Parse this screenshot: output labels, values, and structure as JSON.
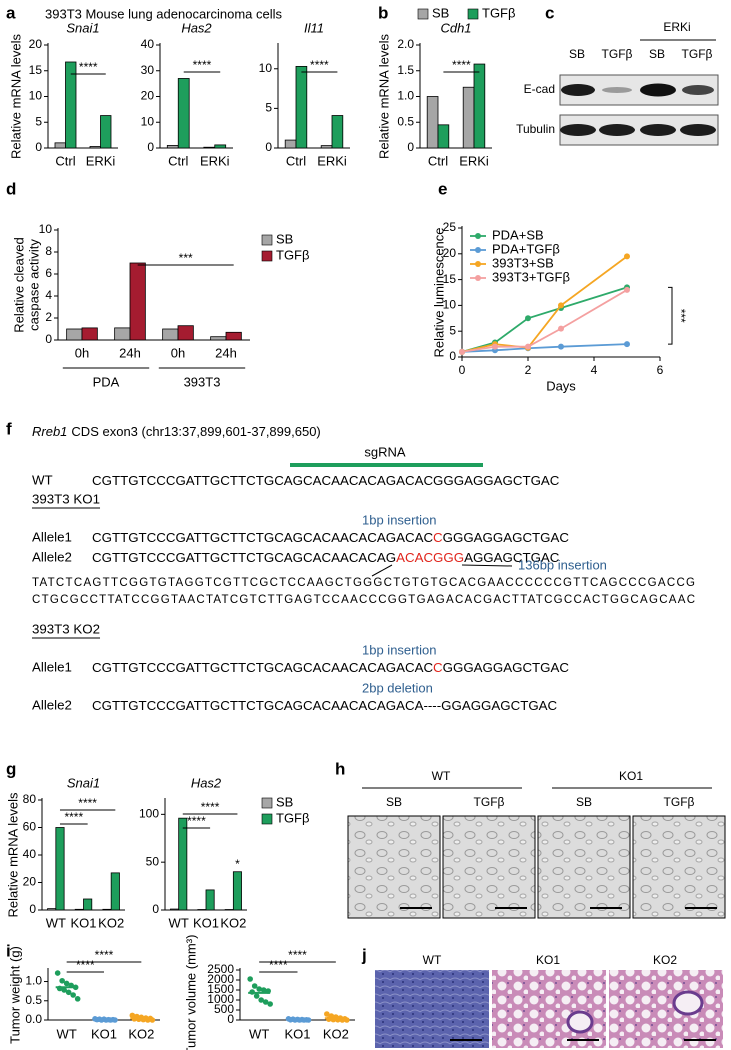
{
  "panel_labels": [
    "a",
    "b",
    "c",
    "d",
    "e",
    "f",
    "g",
    "h",
    "i",
    "j"
  ],
  "header": "393T3 Mouse lung adenocarcinoma cells",
  "blot": {
    "lanes": [
      "SB",
      "TGFβ",
      "SB",
      "TGFβ"
    ],
    "treatment": "ERKi",
    "proteins": [
      "E-cad",
      "Tubulin"
    ]
  },
  "chart_data": [
    {
      "type": "bar",
      "title": "Snai1",
      "ylabel": "Relative mRNA levels",
      "categories": [
        "Ctrl",
        "ERKi"
      ],
      "series": [
        {
          "color": "#a6a6a6",
          "values": [
            1.0,
            0.3
          ]
        },
        {
          "color": "#1e9e5c",
          "values": [
            16.7,
            6.3
          ]
        }
      ],
      "ylim": [
        0,
        20
      ],
      "yticks": [
        0,
        5,
        10,
        15,
        20
      ],
      "significance": [
        "****"
      ]
    },
    {
      "type": "bar",
      "title": "Has2",
      "categories": [
        "Ctrl",
        "ERKi"
      ],
      "series": [
        {
          "color": "#a6a6a6",
          "values": [
            1.0,
            0.3
          ]
        },
        {
          "color": "#1e9e5c",
          "values": [
            27,
            1.2
          ]
        }
      ],
      "ylim": [
        0,
        40
      ],
      "yticks": [
        0,
        10,
        20,
        30,
        40
      ],
      "significance": [
        "****"
      ]
    },
    {
      "type": "bar",
      "title": "Il11",
      "categories": [
        "Ctrl",
        "ERKi"
      ],
      "series": [
        {
          "color": "#a6a6a6",
          "values": [
            1.0,
            0.3
          ]
        },
        {
          "color": "#1e9e5c",
          "values": [
            10.3,
            4.1
          ]
        }
      ],
      "ylim": [
        0,
        13
      ],
      "yticks": [
        0,
        5,
        10
      ],
      "significance": [
        "****"
      ]
    },
    {
      "type": "bar",
      "title": "Cdh1",
      "ylabel": "Relative mRNA levels",
      "categories": [
        "Ctrl",
        "ERKi"
      ],
      "series": [
        {
          "name": "SB",
          "color": "#a6a6a6",
          "values": [
            1.0,
            1.18
          ]
        },
        {
          "name": "TGFβ",
          "color": "#1e9e5c",
          "values": [
            0.45,
            1.63
          ]
        }
      ],
      "ylim": [
        0,
        2
      ],
      "yticks": [
        0,
        0.5,
        {
          "value": 1,
          "label": "1.0"
        },
        1.5,
        {
          "value": 2,
          "label": "2.0"
        }
      ],
      "significance": [
        "****"
      ],
      "legend": "top"
    },
    {
      "type": "bar",
      "ylabel": [
        "Relative cleaved",
        "caspase activity"
      ],
      "categories": [
        "0h",
        "24h",
        "0h",
        "24h"
      ],
      "groups": [
        "PDA",
        "393T3"
      ],
      "series": [
        {
          "name": "SB",
          "color": "#a6a6a6",
          "values": [
            1.0,
            1.1,
            1.0,
            0.3
          ]
        },
        {
          "name": "TGFβ",
          "color": "#a51c30",
          "values": [
            1.1,
            7.0,
            1.3,
            0.7
          ]
        }
      ],
      "ylim": [
        0,
        10
      ],
      "yticks": [
        0,
        2,
        4,
        6,
        8,
        10
      ],
      "significance": [
        "***"
      ],
      "legend": "right"
    },
    {
      "type": "line",
      "ylabel": "Relative luminescence",
      "xlabel": "Days",
      "x": [
        0,
        1,
        2,
        3,
        5
      ],
      "xlim": [
        0,
        6
      ],
      "xticks": [
        0,
        2,
        4,
        6
      ],
      "ylim": [
        0,
        25
      ],
      "yticks": [
        0,
        5,
        10,
        15,
        20,
        25
      ],
      "series": [
        {
          "name": "PDA+SB",
          "color": "#2eaa6a",
          "values": [
            1,
            2.8,
            7.5,
            9.5,
            13.5
          ]
        },
        {
          "name": "PDA+TGFβ",
          "color": "#5b9bd5",
          "values": [
            1,
            1.3,
            1.7,
            2.0,
            2.5
          ]
        },
        {
          "name": "393T3+SB",
          "color": "#f5a623",
          "values": [
            1,
            2.5,
            1.8,
            10,
            19.5
          ]
        },
        {
          "name": "393T3+TGFβ",
          "color": "#f4a0a0",
          "values": [
            1,
            2.0,
            2.0,
            5.5,
            13
          ]
        }
      ],
      "significance": [
        "***"
      ],
      "legend": "top-left"
    },
    {
      "type": "bar",
      "title": "Snai1",
      "ylabel": "Relative mRNA levels",
      "categories": [
        "WT",
        "KO1",
        "KO2"
      ],
      "series": [
        {
          "color": "#a6a6a6",
          "values": [
            1,
            0.5,
            0.5
          ]
        },
        {
          "color": "#1e9e5c",
          "values": [
            60,
            8,
            27
          ]
        }
      ],
      "ylim": [
        0,
        80
      ],
      "yticks": [
        0,
        20,
        40,
        60,
        80
      ],
      "significance": [
        "****",
        "****"
      ]
    },
    {
      "type": "bar",
      "title": "Has2",
      "categories": [
        "WT",
        "KO1",
        "KO2"
      ],
      "series": [
        {
          "name": "SB",
          "color": "#a6a6a6",
          "values": [
            1,
            0.5,
            0.5
          ]
        },
        {
          "name": "TGFβ",
          "color": "#1e9e5c",
          "values": [
            96,
            21,
            40
          ]
        }
      ],
      "ylim": [
        0,
        115
      ],
      "yticks": [
        0,
        50,
        100
      ],
      "significance": [
        "****",
        "****",
        "*"
      ],
      "legend": "right"
    },
    {
      "type": "strip",
      "ylabel": "Tumor weight (g)",
      "categories": [
        "WT",
        "KO1",
        "KO2"
      ],
      "series": [
        {
          "color": "#1e9e5c",
          "values": [
            1.22,
            1.02,
            0.95,
            0.9,
            0.85,
            0.82,
            0.78,
            0.72,
            0.65,
            0.55
          ],
          "mean": 0.85
        },
        {
          "color": "#5b9bd5",
          "values": [
            0.03,
            0.02,
            0.02,
            0.01,
            0.01,
            0.01,
            0,
            0,
            0,
            0
          ],
          "mean": 0.01
        },
        {
          "color": "#f5a623",
          "values": [
            0.12,
            0.09,
            0.07,
            0.05,
            0.04,
            0.03,
            0.02,
            0.01,
            0,
            0
          ],
          "mean": 0.04
        }
      ],
      "ylim": [
        0,
        1.3
      ],
      "yticks": [
        {
          "value": 0,
          "label": "0.0"
        },
        0.5,
        {
          "value": 1,
          "label": "1.0"
        }
      ],
      "significance": [
        "****",
        "****"
      ]
    },
    {
      "type": "strip",
      "ylabel": "Tumor volume (mm³)",
      "categories": [
        "WT",
        "KO1",
        "KO2"
      ],
      "series": [
        {
          "color": "#1e9e5c",
          "values": [
            2050,
            1700,
            1550,
            1500,
            1450,
            1400,
            1200,
            1000,
            900,
            800
          ],
          "mean": 1355
        },
        {
          "color": "#5b9bd5",
          "values": [
            60,
            40,
            30,
            20,
            10,
            10,
            0,
            0,
            0,
            0
          ],
          "mean": 17
        },
        {
          "color": "#f5a623",
          "values": [
            300,
            200,
            150,
            100,
            60,
            40,
            20,
            10,
            0,
            0
          ],
          "mean": 88
        }
      ],
      "ylim": [
        0,
        2500
      ],
      "yticks": [
        0,
        500,
        1000,
        1500,
        2000,
        2500
      ],
      "significance": [
        "****",
        "****"
      ]
    }
  ],
  "sequence": {
    "gene": "Rreb1",
    "title": "CDS exon3 (chr13:37,899,601-37,899,650)",
    "guide": "sgRNA",
    "reference": {
      "label": "WT",
      "segments": [
        {
          "text": "CGTTGTCCCGATTGCTTCTGCAGCACAACACAGACACGGGAGGAGCTGAC"
        }
      ]
    },
    "clones": [
      {
        "label": "393T3 KO1",
        "alleles": [
          {
            "label": "Allele1",
            "note": "1bp insertion",
            "segments": [
              {
                "text": "CGTTGTCCCGATTGCTTCTGCAGCACAACACAGACAC"
              },
              {
                "text": "C",
                "highlight": true
              },
              {
                "text": "GGGAGGAGCTGAC"
              }
            ]
          },
          {
            "label": "Allele2",
            "note": "136bp insertion",
            "segments": [
              {
                "text": "CGTTGTCCCGATTGCTTCTGCAGCACAACACAG"
              },
              {
                "text": "ACACGGG",
                "highlight": true
              },
              {
                "text": "AGGAGCTGAC"
              }
            ],
            "insert": [
              "TATCTCAGTTCGGTGTAGGTCGTTCGCTCCAAGCTGGGCTGTGTGCACGAACCCCCCGTTCAGCCCGACCG",
              "CTGCGCCTTATCCGGTAACTATCGTCTTGAGTCCAACCCGGTGAGACACGACTTATCGCCACTGGCAGCAAC"
            ]
          }
        ]
      },
      {
        "label": "393T3 KO2",
        "alleles": [
          {
            "label": "Allele1",
            "note": "1bp insertion",
            "segments": [
              {
                "text": "CGTTGTCCCGATTGCTTCTGCAGCACAACACAGACAC"
              },
              {
                "text": "C",
                "highlight": true
              },
              {
                "text": "GGGAGGAGCTGAC"
              }
            ]
          },
          {
            "label": "Allele2",
            "note": "2bp deletion",
            "segments": [
              {
                "text": "CGTTGTCCCGATTGCTTCTGCAGCACAACACAGACA----GGAGGAGCTGAC"
              }
            ]
          }
        ]
      }
    ]
  },
  "micrographs": {
    "genotypes": [
      "WT",
      "KO1"
    ],
    "treatments": [
      "SB",
      "TGFβ",
      "SB",
      "TGFβ"
    ]
  },
  "histology": {
    "genotypes": [
      "WT",
      "KO1",
      "KO2"
    ]
  }
}
